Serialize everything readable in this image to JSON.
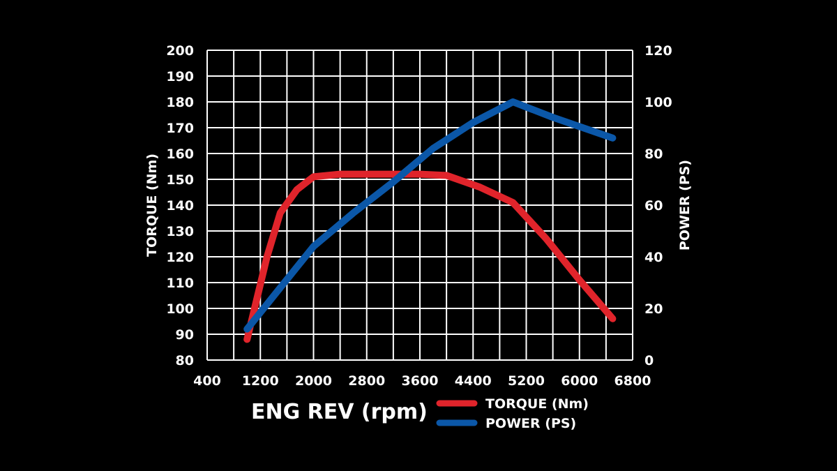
{
  "chart_data": {
    "type": "line",
    "xlabel": "ENG REV (rpm)",
    "ylabel_left": "TORQUE (Nm)",
    "ylabel_right": "POWER (PS)",
    "xlim": [
      400,
      6800
    ],
    "ylim_left": [
      80,
      200
    ],
    "ylim_right": [
      0,
      120
    ],
    "x_ticks": [
      "400",
      "1200",
      "2000",
      "2800",
      "3600",
      "4400",
      "5200",
      "6000",
      "6800"
    ],
    "y_left_ticks": [
      "80",
      "90",
      "100",
      "110",
      "120",
      "130",
      "140",
      "150",
      "160",
      "170",
      "180",
      "190",
      "200"
    ],
    "y_right_ticks": [
      "0",
      "20",
      "40",
      "60",
      "80",
      "100",
      "120"
    ],
    "grid": true,
    "x_grid_step": 400,
    "legend_position": "bottom-right",
    "series": [
      {
        "name": "TORQUE (Nm)",
        "axis": "left",
        "color": "#e0242b",
        "points": [
          [
            1000,
            88
          ],
          [
            1300,
            120
          ],
          [
            1500,
            137
          ],
          [
            1750,
            146
          ],
          [
            2000,
            151
          ],
          [
            2400,
            152
          ],
          [
            3000,
            152
          ],
          [
            3600,
            152
          ],
          [
            4000,
            151.5
          ],
          [
            4500,
            147
          ],
          [
            5000,
            141
          ],
          [
            5500,
            127
          ],
          [
            6000,
            111
          ],
          [
            6500,
            96
          ]
        ]
      },
      {
        "name": "POWER (PS)",
        "axis": "right",
        "color": "#0b57a8",
        "points": [
          [
            1000,
            12
          ],
          [
            1500,
            28
          ],
          [
            2000,
            44
          ],
          [
            2600,
            57
          ],
          [
            3200,
            69
          ],
          [
            3800,
            82
          ],
          [
            4400,
            92
          ],
          [
            5000,
            100
          ],
          [
            5600,
            94
          ],
          [
            6500,
            86
          ]
        ]
      }
    ]
  }
}
